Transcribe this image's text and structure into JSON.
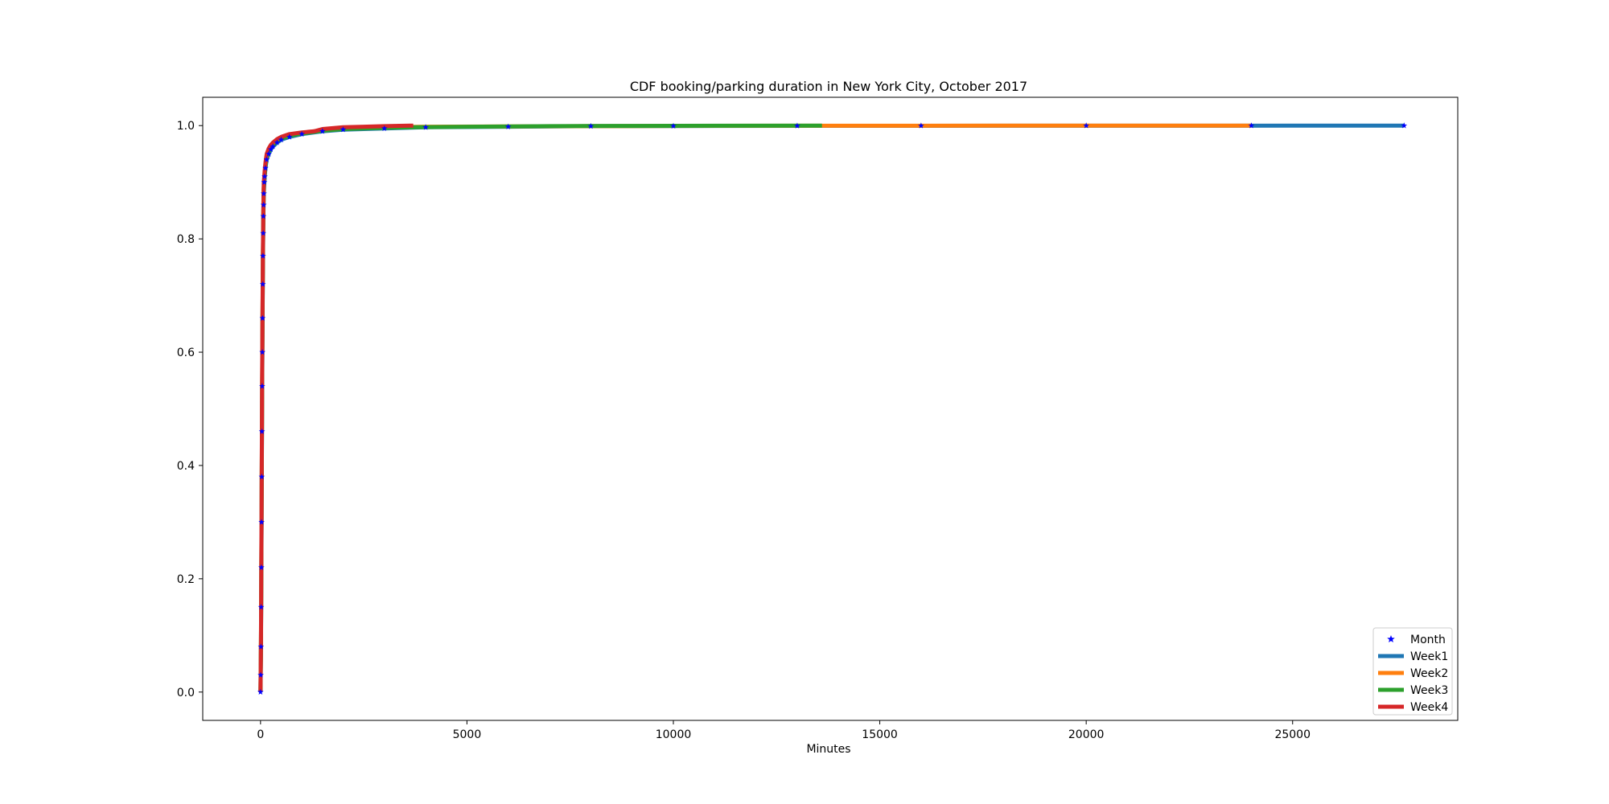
{
  "chart_data": {
    "type": "line",
    "title": "CDF booking/parking duration in New York City, October 2017",
    "xlabel": "Minutes",
    "ylabel": "",
    "xlim": [
      -1400,
      29000
    ],
    "ylim": [
      -0.05,
      1.05
    ],
    "xticks": [
      0,
      5000,
      10000,
      15000,
      20000,
      25000
    ],
    "xtick_labels": [
      "0",
      "5000",
      "10000",
      "15000",
      "20000",
      "25000"
    ],
    "yticks": [
      0.0,
      0.2,
      0.4,
      0.6,
      0.8,
      1.0
    ],
    "ytick_labels": [
      "0.0",
      "0.2",
      "0.4",
      "0.6",
      "0.8",
      "1.0"
    ],
    "grid": false,
    "legend_position": "lower-right",
    "series": [
      {
        "name": "Month",
        "marker": "star",
        "color": "#0000ff",
        "x": [
          0,
          5,
          10,
          15,
          20,
          25,
          30,
          35,
          40,
          45,
          50,
          55,
          60,
          65,
          70,
          75,
          80,
          90,
          100,
          120,
          150,
          200,
          250,
          300,
          400,
          500,
          700,
          1000,
          1500,
          2000,
          3000,
          4000,
          6000,
          8000,
          10000,
          13000,
          16000,
          20000,
          24000,
          27700
        ],
        "y": [
          0.0,
          0.03,
          0.08,
          0.15,
          0.22,
          0.3,
          0.38,
          0.46,
          0.54,
          0.6,
          0.66,
          0.72,
          0.77,
          0.81,
          0.84,
          0.86,
          0.88,
          0.9,
          0.91,
          0.925,
          0.94,
          0.95,
          0.958,
          0.963,
          0.97,
          0.975,
          0.98,
          0.985,
          0.99,
          0.993,
          0.995,
          0.997,
          0.998,
          0.999,
          0.9993,
          0.9996,
          0.9998,
          0.9999,
          0.99995,
          1.0
        ]
      },
      {
        "name": "Week1",
        "color": "#1f77b4",
        "x": [
          0,
          10,
          20,
          30,
          40,
          50,
          60,
          70,
          80,
          100,
          120,
          150,
          200,
          250,
          300,
          400,
          500,
          700,
          1000,
          1500,
          2000,
          3000,
          4000,
          6000,
          8000,
          10000,
          15000,
          20000,
          25000,
          27700
        ],
        "y": [
          0.0,
          0.08,
          0.22,
          0.38,
          0.54,
          0.66,
          0.77,
          0.84,
          0.88,
          0.91,
          0.925,
          0.94,
          0.95,
          0.958,
          0.963,
          0.97,
          0.975,
          0.98,
          0.985,
          0.99,
          0.993,
          0.995,
          0.997,
          0.998,
          0.999,
          0.9993,
          0.9996,
          0.9998,
          0.9999,
          1.0
        ]
      },
      {
        "name": "Week2",
        "color": "#ff7f0e",
        "x": [
          0,
          10,
          20,
          30,
          40,
          50,
          60,
          70,
          80,
          100,
          120,
          150,
          200,
          250,
          300,
          400,
          500,
          700,
          1000,
          1500,
          2000,
          3000,
          4000,
          6000,
          8000,
          10000,
          13600,
          18000,
          24000
        ],
        "y": [
          0.0,
          0.09,
          0.24,
          0.4,
          0.56,
          0.68,
          0.78,
          0.85,
          0.89,
          0.915,
          0.93,
          0.945,
          0.955,
          0.962,
          0.967,
          0.973,
          0.978,
          0.983,
          0.987,
          0.992,
          0.995,
          0.997,
          0.998,
          0.9985,
          0.999,
          0.9995,
          0.9997,
          0.9999,
          1.0
        ]
      },
      {
        "name": "Week3",
        "color": "#2ca02c",
        "x": [
          0,
          10,
          20,
          30,
          40,
          50,
          60,
          70,
          80,
          100,
          120,
          150,
          200,
          250,
          300,
          400,
          500,
          700,
          1000,
          1500,
          2000,
          3000,
          3700,
          5000,
          7000,
          9000,
          11000,
          13600
        ],
        "y": [
          0.0,
          0.08,
          0.23,
          0.39,
          0.55,
          0.67,
          0.78,
          0.85,
          0.89,
          0.912,
          0.928,
          0.944,
          0.954,
          0.961,
          0.966,
          0.972,
          0.977,
          0.982,
          0.986,
          0.991,
          0.994,
          0.996,
          0.997,
          0.998,
          0.999,
          0.9995,
          0.9998,
          1.0
        ]
      },
      {
        "name": "Week4",
        "color": "#d62728",
        "x": [
          0,
          10,
          20,
          30,
          40,
          50,
          60,
          70,
          80,
          100,
          120,
          150,
          200,
          250,
          300,
          400,
          500,
          700,
          1000,
          1300,
          1500,
          2000,
          2500,
          3000,
          3700
        ],
        "y": [
          0.0,
          0.09,
          0.25,
          0.41,
          0.57,
          0.69,
          0.79,
          0.86,
          0.9,
          0.92,
          0.935,
          0.95,
          0.96,
          0.966,
          0.97,
          0.976,
          0.98,
          0.985,
          0.988,
          0.99,
          0.994,
          0.997,
          0.998,
          0.999,
          1.0
        ]
      }
    ]
  }
}
